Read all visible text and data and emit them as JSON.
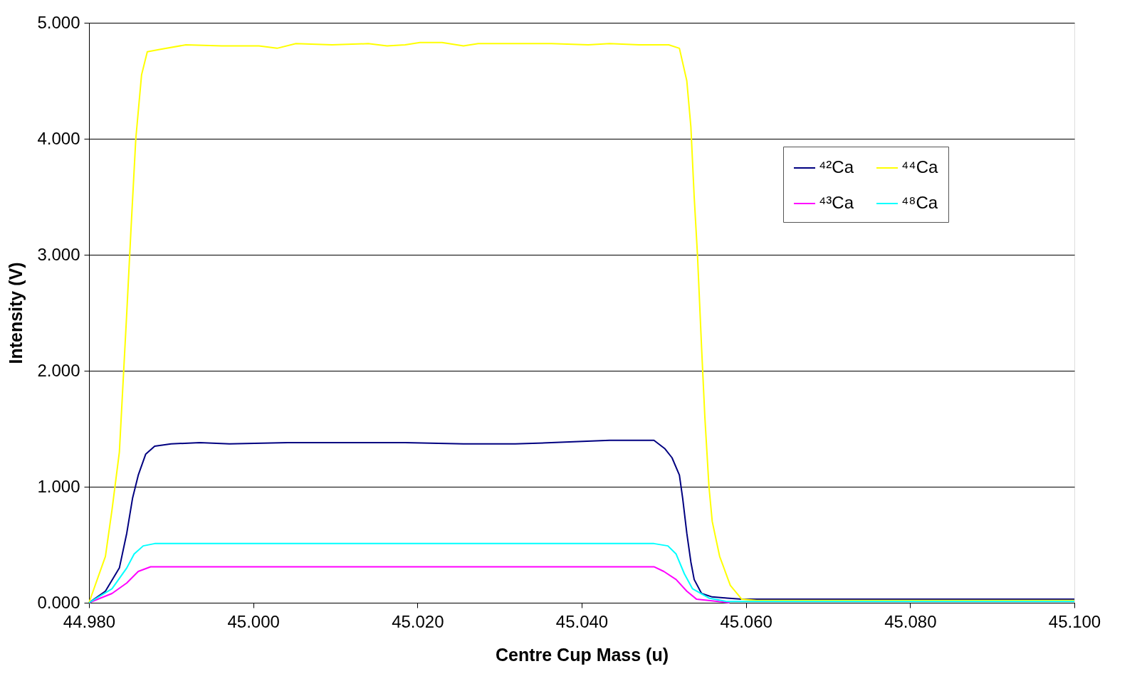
{
  "chart_data": {
    "type": "line",
    "xlabel": "Centre Cup Mass (u)",
    "ylabel": "Intensity (V)",
    "xlim": [
      44.98,
      45.1
    ],
    "ylim": [
      0,
      5
    ],
    "xticks": [
      {
        "value": 44.98,
        "label": "44.980"
      },
      {
        "value": 45.0,
        "label": "45.000"
      },
      {
        "value": 45.02,
        "label": "45.020"
      },
      {
        "value": 45.04,
        "label": "45.040"
      },
      {
        "value": 45.06,
        "label": "45.060"
      },
      {
        "value": 45.08,
        "label": "45.080"
      },
      {
        "value": 45.1,
        "label": "45.100"
      }
    ],
    "yticks": [
      {
        "value": 0,
        "label": "0.000"
      },
      {
        "value": 1,
        "label": "1.000"
      },
      {
        "value": 2,
        "label": "2.000"
      },
      {
        "value": 3,
        "label": "3.000"
      },
      {
        "value": 4,
        "label": "4.000"
      },
      {
        "value": 5,
        "label": "5.000"
      }
    ],
    "grid": "y",
    "legend": "top right",
    "line_style": "solid",
    "marker": "none",
    "series": [
      {
        "name": "⁴²Ca",
        "color": "#000080",
        "x": [
          44.98,
          44.982,
          44.9837,
          44.9846,
          44.9853,
          44.986,
          44.9869,
          44.988,
          44.99,
          44.9935,
          44.9971,
          45.0042,
          45.0185,
          45.0256,
          45.0319,
          45.0363,
          45.0434,
          45.0488,
          45.0501,
          45.051,
          45.0519,
          45.0523,
          45.0528,
          45.0533,
          45.0537,
          45.0546,
          45.0559,
          45.0577,
          45.0595,
          45.1
        ],
        "values": [
          0,
          0.1,
          0.3,
          0.6,
          0.9,
          1.1,
          1.28,
          1.35,
          1.37,
          1.38,
          1.37,
          1.38,
          1.38,
          1.37,
          1.37,
          1.38,
          1.4,
          1.4,
          1.33,
          1.25,
          1.1,
          0.9,
          0.6,
          0.35,
          0.2,
          0.08,
          0.05,
          0.04,
          0.03,
          0.03
        ]
      },
      {
        "name": "⁴³Ca",
        "color": "#ff00ff",
        "x": [
          44.98,
          44.9828,
          44.9846,
          44.986,
          44.9875,
          45.0488,
          45.05,
          45.0515,
          45.0528,
          45.054,
          45.058
        ],
        "values": [
          0,
          0.08,
          0.17,
          0.27,
          0.31,
          0.31,
          0.27,
          0.2,
          0.1,
          0.03,
          0
        ]
      },
      {
        "name": "⁴⁴Ca",
        "color": "#ffff00",
        "x": [
          44.98,
          44.982,
          44.9828,
          44.9837,
          44.9846,
          44.9851,
          44.9857,
          44.9864,
          44.9871,
          44.9886,
          44.9918,
          44.9962,
          45.0007,
          45.0029,
          45.0052,
          45.0096,
          45.014,
          45.0163,
          45.0185,
          45.0203,
          45.023,
          45.0256,
          45.0274,
          45.0319,
          45.0363,
          45.0408,
          45.0434,
          45.047,
          45.0506,
          45.0519,
          45.0528,
          45.0533,
          45.0537,
          45.0541,
          45.0546,
          45.055,
          45.0555,
          45.0559,
          45.0568,
          45.0581,
          45.0595,
          45.0613,
          45.1
        ],
        "values": [
          0,
          0.4,
          0.8,
          1.3,
          2.5,
          3.2,
          4.0,
          4.55,
          4.75,
          4.77,
          4.81,
          4.8,
          4.8,
          4.78,
          4.82,
          4.81,
          4.82,
          4.8,
          4.81,
          4.83,
          4.83,
          4.8,
          4.82,
          4.82,
          4.82,
          4.81,
          4.82,
          4.81,
          4.81,
          4.78,
          4.5,
          4.1,
          3.5,
          3.0,
          2.2,
          1.6,
          1.0,
          0.7,
          0.4,
          0.15,
          0.03,
          0.02,
          0.02
        ]
      },
      {
        "name": "⁴⁸Ca",
        "color": "#00ffff",
        "x": [
          44.98,
          44.9828,
          44.9846,
          44.9855,
          44.9866,
          44.988,
          45.0488,
          45.0505,
          45.0515,
          45.0525,
          45.0535,
          45.0555,
          45.0577,
          45.1
        ],
        "values": [
          0,
          0.12,
          0.3,
          0.42,
          0.49,
          0.51,
          0.51,
          0.49,
          0.42,
          0.25,
          0.12,
          0.04,
          0.01,
          0.01
        ]
      }
    ]
  }
}
